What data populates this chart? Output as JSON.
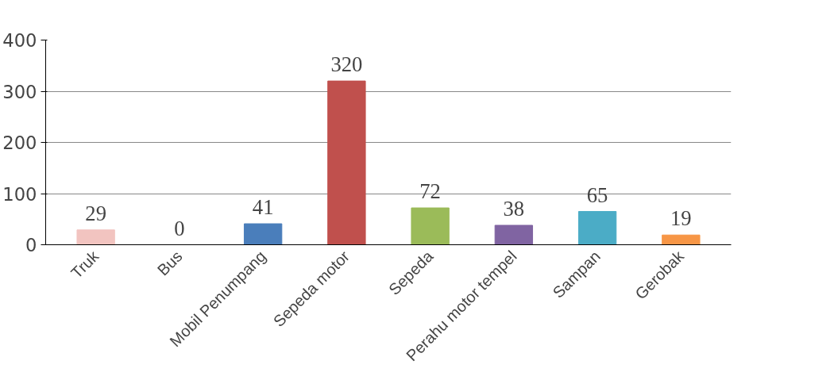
{
  "chart_data": {
    "type": "bar",
    "categories": [
      "Truk",
      "Bus",
      "Mobil Penumpang",
      "Sepeda motor",
      "Sepeda",
      "Perahu motor tempel",
      "Sampan",
      "Gerobak"
    ],
    "values": [
      29,
      0,
      41,
      320,
      72,
      38,
      65,
      19
    ],
    "colors": [
      "#f2c4c0",
      "#1f3864",
      "#4a7ebb",
      "#c0504d",
      "#9bbb59",
      "#8064a2",
      "#4bacc6",
      "#f79646"
    ],
    "ylim": [
      0,
      400
    ],
    "yticks": [
      0,
      100,
      200,
      300,
      400
    ],
    "grid": "y",
    "data_labels": true
  }
}
